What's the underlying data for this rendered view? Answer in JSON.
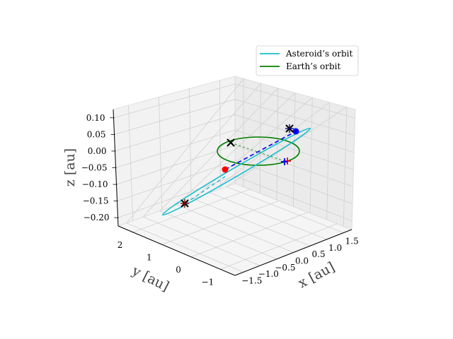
{
  "chart_data": {
    "type": "line3d",
    "title": "",
    "xlabel": "x [au]",
    "ylabel": "y [au]",
    "zlabel": "z [au]",
    "x_ticks": [
      "−1.5",
      "−1.0",
      "−0.5",
      "0.0",
      "0.5",
      "1.0",
      "1.5"
    ],
    "y_ticks": [
      "−1",
      "0",
      "1",
      "2"
    ],
    "z_ticks": [
      "−0.20",
      "−0.15",
      "−0.10",
      "−0.05",
      "0.00",
      "0.05",
      "0.10"
    ],
    "grid": true,
    "legend_position": "upper-right",
    "series": [
      {
        "name": "Asteroid’s orbit",
        "color": "#17becf",
        "kind": "orbit"
      },
      {
        "name": "Earth’s orbit",
        "color": "#008000",
        "kind": "orbit"
      }
    ],
    "markers": [
      {
        "label": "asteroid-position",
        "color": "#ff0000",
        "shape": "dot"
      },
      {
        "label": "earth-position",
        "color": "#0000ff",
        "shape": "dot"
      },
      {
        "label": "asteroid-node-1",
        "color": "#000000",
        "shape": "x"
      },
      {
        "label": "asteroid-node-2",
        "color": "#000000",
        "shape": "x"
      },
      {
        "label": "earth-node",
        "color": "#000000",
        "shape": "x"
      },
      {
        "label": "red-cross",
        "color": "#ff0000",
        "shape": "plus"
      },
      {
        "label": "blue-cross",
        "color": "#0000ff",
        "shape": "plus"
      }
    ]
  }
}
